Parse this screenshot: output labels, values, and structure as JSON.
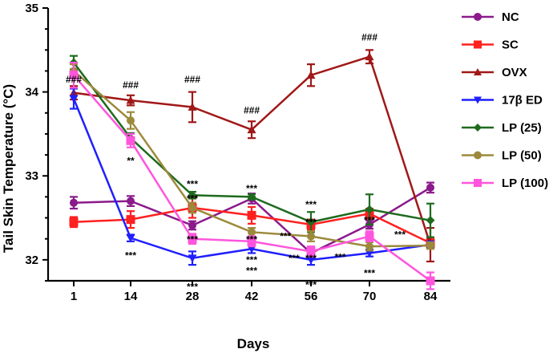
{
  "chart_data": {
    "type": "line",
    "title": "",
    "xlabel": "Days",
    "ylabel": "Tail Skin Temperature (°C)",
    "x": [
      1,
      14,
      28,
      42,
      56,
      70,
      84
    ],
    "x_tick_labels": [
      "1",
      "14",
      "28",
      "42",
      "56",
      "70",
      "84"
    ],
    "ylim": [
      31.75,
      35
    ],
    "y_ticks": [
      32,
      33,
      34,
      35
    ],
    "y_tick_labels": [
      "32",
      "33",
      "34",
      "35"
    ],
    "legend_position": "right",
    "series": [
      {
        "name": "NC",
        "color": "#8B1A8B",
        "marker": "circle",
        "values": [
          32.68,
          32.7,
          32.41,
          32.73,
          32.08,
          32.42,
          32.86
        ],
        "errors": [
          0.07,
          0.06,
          0.05,
          0.06,
          0.06,
          0.05,
          0.06
        ]
      },
      {
        "name": "SC",
        "color": "#FF2020",
        "marker": "square",
        "values": [
          32.45,
          32.48,
          32.62,
          32.53,
          32.42,
          32.55,
          32.2
        ],
        "errors": [
          0.06,
          0.1,
          0.12,
          0.1,
          0.06,
          0.06,
          0.06
        ]
      },
      {
        "name": "OVX",
        "color": "#A01818",
        "marker": "triangle-up",
        "values": [
          33.99,
          33.9,
          33.82,
          33.55,
          34.2,
          34.42,
          32.18
        ],
        "errors": [
          0.08,
          0.06,
          0.18,
          0.1,
          0.13,
          0.08,
          0.2
        ]
      },
      {
        "name": "17β ED",
        "color": "#1F1FFF",
        "marker": "triangle-down",
        "values": [
          33.92,
          32.26,
          32.02,
          32.13,
          32.0,
          32.08,
          32.18
        ],
        "errors": [
          0.12,
          0.04,
          0.08,
          0.05,
          0.06,
          0.04,
          0.04
        ]
      },
      {
        "name": "LP (25)",
        "color": "#1E6B1E",
        "marker": "diamond",
        "values": [
          34.35,
          33.45,
          32.77,
          32.75,
          32.45,
          32.6,
          32.47
        ],
        "errors": [
          0.08,
          0.06,
          0.04,
          0.03,
          0.12,
          0.18,
          0.2
        ]
      },
      {
        "name": "LP (50)",
        "color": "#9C8A3C",
        "marker": "circle",
        "values": [
          34.25,
          33.66,
          32.62,
          32.33,
          32.28,
          32.16,
          32.17
        ],
        "errors": [
          0.08,
          0.1,
          0.06,
          0.05,
          0.06,
          0.05,
          0.04
        ]
      },
      {
        "name": "LP (100)",
        "color": "#FF55DD",
        "marker": "square",
        "values": [
          34.2,
          33.42,
          32.25,
          32.22,
          32.1,
          32.28,
          31.75
        ],
        "errors": [
          0.15,
          0.08,
          0.06,
          0.06,
          0.06,
          0.06,
          0.1
        ]
      }
    ],
    "annotations": [
      {
        "text": "###",
        "x": 1,
        "y": 34.15
      },
      {
        "text": "###",
        "x": 14,
        "y": 34.08
      },
      {
        "text": "###",
        "x": 28,
        "y": 34.15
      },
      {
        "text": "###",
        "x": 42,
        "y": 33.78
      },
      {
        "text": "###",
        "x": 70,
        "y": 34.65
      },
      {
        "text": "**",
        "x": 14,
        "y": 33.18
      },
      {
        "text": "***",
        "x": 28,
        "y": 32.9
      },
      {
        "text": "***",
        "x": 28,
        "y": 32.73
      },
      {
        "text": "***",
        "x": 28,
        "y": 32.24
      },
      {
        "text": "***",
        "x": 28,
        "y": 31.68
      },
      {
        "text": "***",
        "x": 14,
        "y": 32.05
      },
      {
        "text": "***",
        "x": 42,
        "y": 32.85
      },
      {
        "text": "***",
        "x": 42,
        "y": 32.24
      },
      {
        "text": "***",
        "x": 42,
        "y": 32.0
      },
      {
        "text": "***",
        "x": 42,
        "y": 31.87
      },
      {
        "text": "***",
        "x": 56,
        "y": 32.66
      },
      {
        "text": "***",
        "x": 56,
        "y": 32.45
      },
      {
        "text": "***",
        "x": 56,
        "y": 32.02
      },
      {
        "text": "***",
        "x": 56,
        "y": 31.7
      },
      {
        "text": "***",
        "x": 63,
        "y": 32.03
      },
      {
        "text": "***",
        "x": 70,
        "y": 32.47
      },
      {
        "text": "***",
        "x": 70,
        "y": 31.84
      },
      {
        "text": "***",
        "x": 77,
        "y": 32.3
      },
      {
        "text": "***",
        "x": 52,
        "y": 32.02
      },
      {
        "text": "***",
        "x": 50,
        "y": 32.28
      }
    ]
  }
}
